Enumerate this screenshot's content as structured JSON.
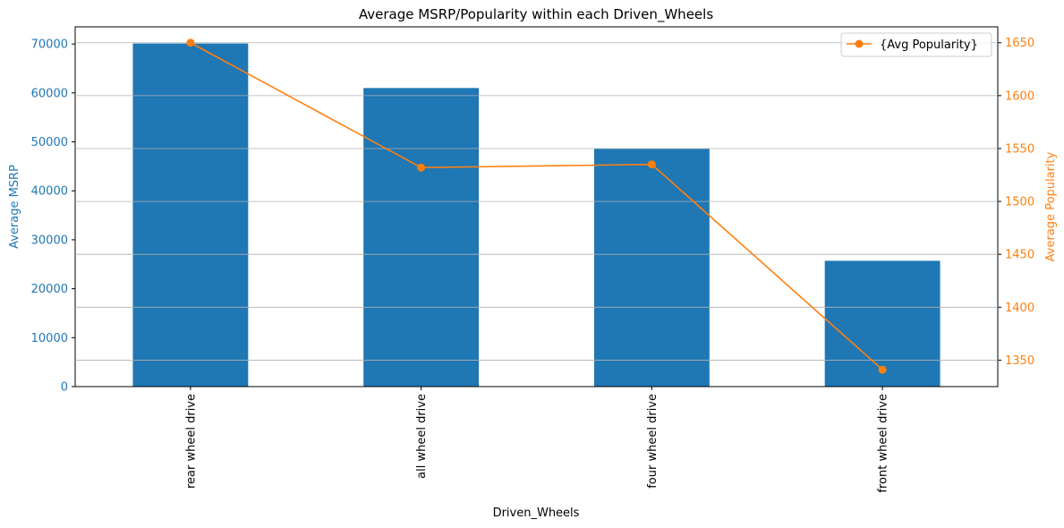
{
  "chart_data": {
    "type": "bar",
    "title": "Average MSRP/Popularity within each Driven_Wheels",
    "xlabel": "Driven_Wheels",
    "categories": [
      "rear wheel drive",
      "all wheel drive",
      "four wheel drive",
      "front wheel drive"
    ],
    "series": [
      {
        "axis": "left",
        "type": "bar",
        "values": [
          70100,
          61000,
          48600,
          25700
        ],
        "color": "#1f77b4"
      },
      {
        "name": "{Avg Popularity}",
        "axis": "right",
        "type": "line",
        "marker": "circle",
        "values": [
          1650,
          1532,
          1535,
          1341
        ],
        "color": "#ff7f0e"
      }
    ],
    "y_left": {
      "label": "Average MSRP",
      "ylim": [
        0,
        73500
      ],
      "ticks": [
        0,
        10000,
        20000,
        30000,
        40000,
        50000,
        60000,
        70000
      ],
      "color": "#1f77b4"
    },
    "y_right": {
      "label": "Average Popularity",
      "ylim": [
        1325,
        1665
      ],
      "ticks": [
        1350,
        1400,
        1450,
        1500,
        1550,
        1600,
        1650
      ],
      "color": "#ff7f0e"
    },
    "grid": "right-axis horizontal",
    "legend": {
      "position": "top-right",
      "entries": [
        "{Avg Popularity}"
      ]
    }
  }
}
